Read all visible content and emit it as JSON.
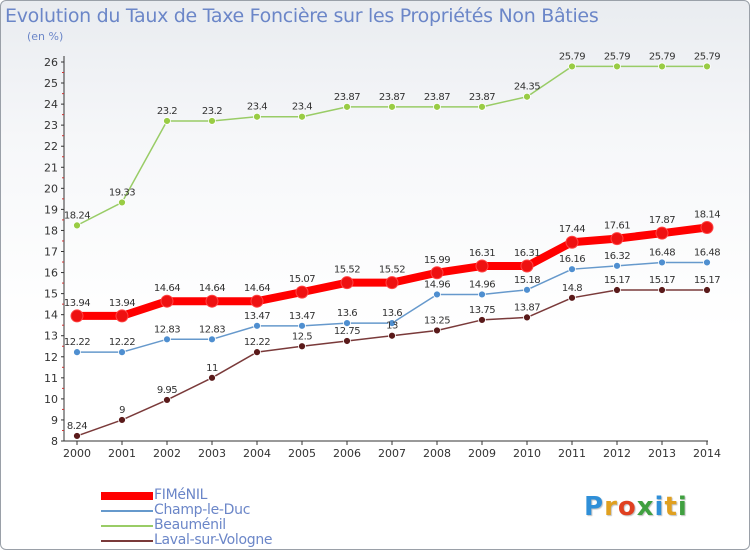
{
  "title": "Evolution du Taux de Taxe Foncière sur les Propriétés Non Bâties",
  "subtitle": "(en %)",
  "logo": {
    "text": "Proxiti",
    "letters": [
      {
        "ch": "P",
        "color": "#2f8fd8"
      },
      {
        "ch": "r",
        "color": "#e0a020"
      },
      {
        "ch": "o",
        "color": "#e04020"
      },
      {
        "ch": "x",
        "color": "#40a040"
      },
      {
        "ch": "i",
        "color": "#2f8fd8"
      },
      {
        "ch": "t",
        "color": "#e0a020"
      },
      {
        "ch": "i",
        "color": "#40a040"
      }
    ]
  },
  "chart_data": {
    "type": "line",
    "ylim": [
      8,
      26
    ],
    "yticks": [
      "8",
      "9",
      "10",
      "11",
      "12",
      "13",
      "14",
      "15",
      "16",
      "17",
      "18",
      "19",
      "20",
      "21",
      "22",
      "23",
      "24",
      "25",
      "26"
    ],
    "grid": false,
    "legend_position": "bottom-left",
    "x": [
      "2000",
      "2001",
      "2002",
      "2003",
      "2004",
      "2005",
      "2006",
      "2007",
      "2008",
      "2009",
      "2010",
      "2011",
      "2012",
      "2013",
      "2014"
    ],
    "series": [
      {
        "name": "Beauménil",
        "color": "#99cc66",
        "point_color": "#99cc44",
        "thick": false,
        "values": [
          18.24,
          19.33,
          23.2,
          23.2,
          23.4,
          23.4,
          23.87,
          23.87,
          23.87,
          23.87,
          24.35,
          25.79,
          25.79,
          25.79,
          25.79
        ],
        "labels": [
          "18.24",
          "19.33",
          "23.2",
          "23.2",
          "23.4",
          "23.4",
          "23.87",
          "23.87",
          "23.87",
          "23.87",
          "24.35",
          "25.79",
          "25.79",
          "25.79",
          "25.79"
        ]
      },
      {
        "name": "Champ-le-Duc",
        "color": "#6699cc",
        "point_color": "#4f8fd0",
        "thick": false,
        "values": [
          12.22,
          12.22,
          12.83,
          12.83,
          13.47,
          13.47,
          13.6,
          13.6,
          14.96,
          14.96,
          15.18,
          16.16,
          16.32,
          16.48,
          16.48
        ],
        "labels": [
          "12.22",
          "12.22",
          "12.83",
          "12.83",
          "13.47",
          "13.47",
          "13.6",
          "13.6",
          "14.96",
          "14.96",
          "15.18",
          "16.16",
          "16.32",
          "16.48",
          "16.48"
        ]
      },
      {
        "name": "Laval-sur-Vologne",
        "color": "#7a3a3a",
        "point_color": "#5a1a1a",
        "thick": false,
        "values": [
          8.24,
          9,
          9.95,
          11,
          12.22,
          12.5,
          12.75,
          13,
          13.25,
          13.75,
          13.87,
          14.8,
          15.17,
          15.17,
          15.17
        ],
        "labels": [
          "8.24",
          "9",
          "9.95",
          "11",
          "12.22",
          "12.5",
          "12.75",
          "13",
          "13.25",
          "13.75",
          "13.87",
          "14.8",
          "15.17",
          "15.17",
          "15.17"
        ]
      },
      {
        "name": "FIMéNIL",
        "color": "#ff0000",
        "point_color": "#ee1111",
        "thick": true,
        "values": [
          13.94,
          13.94,
          14.64,
          14.64,
          14.64,
          15.07,
          15.52,
          15.52,
          15.99,
          16.31,
          16.31,
          17.44,
          17.61,
          17.87,
          18.14
        ],
        "labels": [
          "13.94",
          "13.94",
          "14.64",
          "14.64",
          "14.64",
          "15.07",
          "15.52",
          "15.52",
          "15.99",
          "16.31",
          "16.31",
          "17.44",
          "17.61",
          "17.87",
          "18.14"
        ]
      }
    ],
    "legend": [
      {
        "name": "FIMéNIL",
        "color": "#ff0000",
        "thick": true
      },
      {
        "name": "Champ-le-Duc",
        "color": "#6699cc",
        "thick": false
      },
      {
        "name": "Beauménil",
        "color": "#99cc66",
        "thick": false
      },
      {
        "name": "Laval-sur-Vologne",
        "color": "#7a3a3a",
        "thick": false
      }
    ]
  }
}
